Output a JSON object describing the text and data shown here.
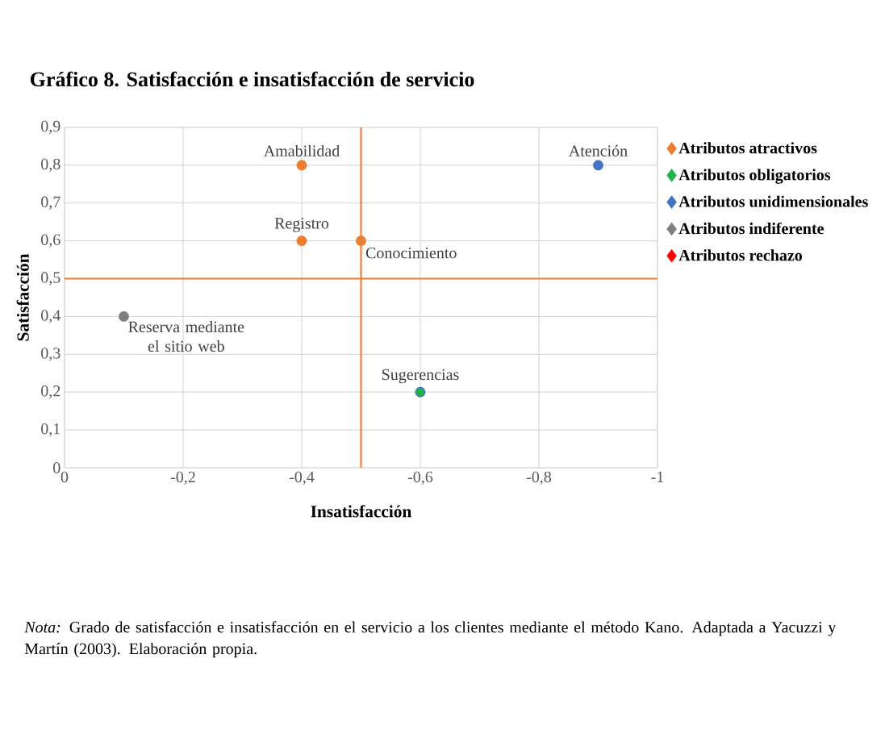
{
  "chart_data": {
    "type": "scatter",
    "title": "Gráfico 8. Satisfacción e insatisfacción de servicio",
    "xlabel": "Insatisfacción",
    "ylabel": "Satisfacción",
    "xlim": [
      0,
      -1
    ],
    "xticks": [
      0,
      {
        "value": -0.2,
        "label": "-0,2"
      },
      {
        "value": -0.4,
        "label": "-0,4"
      },
      {
        "value": -0.6,
        "label": "-0,6"
      },
      {
        "value": -0.8,
        "label": "-0,8"
      },
      -1
    ],
    "ylim": [
      0,
      0.9
    ],
    "yticks": [
      0,
      {
        "value": 0.1,
        "label": "0,1"
      },
      {
        "value": 0.2,
        "label": "0,2"
      },
      {
        "value": 0.3,
        "label": "0,3"
      },
      {
        "value": 0.4,
        "label": "0,4"
      },
      {
        "value": 0.5,
        "label": "0,5"
      },
      {
        "value": 0.6,
        "label": "0,6"
      },
      {
        "value": 0.7,
        "label": "0,7"
      },
      {
        "value": 0.8,
        "label": "0,8"
      },
      {
        "value": 0.9,
        "label": "0,9"
      }
    ],
    "series": [
      {
        "name": "Atributos atractivos",
        "color": "#ed7d31",
        "x": [
          -0.4,
          -0.4,
          -0.5
        ],
        "values": [
          0.8,
          0.6,
          0.6
        ]
      },
      {
        "name": "Atributos obligatorios",
        "color": "#21b04a",
        "x": [
          -0.6
        ],
        "values": [
          0.2
        ]
      },
      {
        "name": "Atributos unidimensionales",
        "color": "#4472c4",
        "x": [
          -0.9,
          -0.6
        ],
        "values": [
          0.8,
          0.2
        ]
      },
      {
        "name": "Atributos indiferente",
        "color": "#7f7f7f",
        "x": [
          -0.1
        ],
        "values": [
          0.4
        ]
      },
      {
        "name": "Atributos rechazo",
        "color": "#ff0000"
      }
    ],
    "ref_lines": [
      {
        "axis": "x",
        "value": -0.5,
        "color": "#ed7d31"
      },
      {
        "axis": "y",
        "value": 0.5,
        "color": "#ed7d31"
      }
    ],
    "annotations": [
      {
        "text": "Amabilidad",
        "x": -0.4,
        "y": 0.8
      },
      {
        "text": "Atención",
        "x": -0.9,
        "y": 0.8
      },
      {
        "text": "Registro",
        "x": -0.4,
        "y": 0.6
      },
      {
        "text": "Conocimiento",
        "x": -0.5,
        "y": 0.6
      },
      {
        "text": "Reserva mediante el sitio web",
        "x": -0.1,
        "y": 0.4
      },
      {
        "text": "Sugerencias",
        "x": -0.6,
        "y": 0.2
      },
      "*Nota:* Grado de satisfacción e insatisfacción en el servicio a los clientes mediante el método Kano. Adaptada a Yacuzzi y Martín (2003). Elaboración propia."
    ],
    "grid": true,
    "legend": "right"
  }
}
